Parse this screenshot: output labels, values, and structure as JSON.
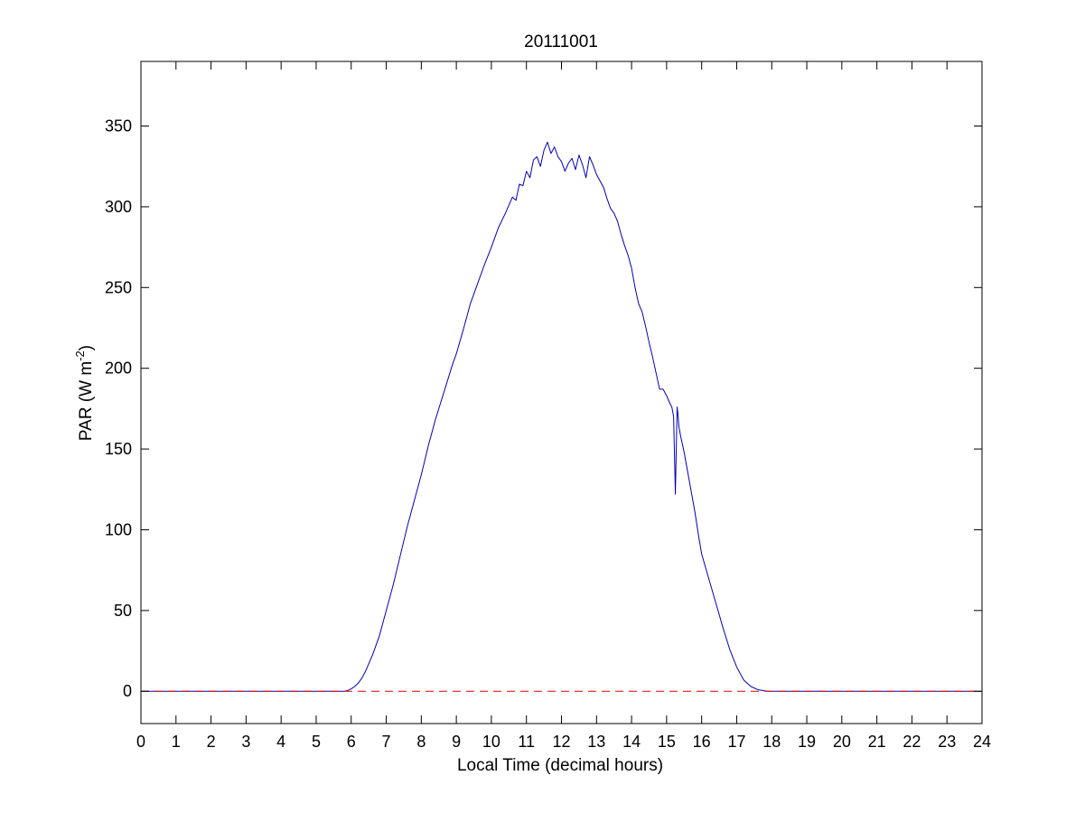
{
  "chart_data": {
    "type": "line",
    "title": "20111001",
    "xlabel": "Local Time (decimal hours)",
    "ylabel": {
      "main": "PAR (W m",
      "superscript": "-2",
      "suffix": ")"
    },
    "xlim": [
      0,
      24
    ],
    "ylim": [
      -20,
      390
    ],
    "x_ticks": [
      0,
      1,
      2,
      3,
      4,
      5,
      6,
      7,
      8,
      9,
      10,
      11,
      12,
      13,
      14,
      15,
      16,
      17,
      18,
      19,
      20,
      21,
      22,
      23,
      24
    ],
    "x_tick_labels": [
      "0",
      "1",
      "2",
      "3",
      "4",
      "5",
      "6",
      "7",
      "8",
      "9",
      "10",
      "11",
      "12",
      "13",
      "14",
      "15",
      "16",
      "17",
      "18",
      "19",
      "20",
      "21",
      "22",
      "23",
      "24"
    ],
    "y_ticks": [
      0,
      50,
      100,
      150,
      200,
      250,
      300,
      350
    ],
    "y_tick_labels": [
      "0",
      "50",
      "100",
      "150",
      "200",
      "250",
      "300",
      "350"
    ],
    "grid": false,
    "box": true,
    "series": [
      {
        "color": "#0000bb",
        "style": "solid",
        "x": [
          0,
          5.8,
          5.9,
          6.0,
          6.1,
          6.2,
          6.3,
          6.4,
          6.5,
          6.6,
          6.7,
          6.8,
          6.9,
          7.0,
          7.2,
          7.4,
          7.6,
          7.8,
          8.0,
          8.2,
          8.4,
          8.6,
          8.8,
          8.9,
          9.0,
          9.2,
          9.3,
          9.4,
          9.6,
          9.8,
          10.0,
          10.2,
          10.4,
          10.6,
          10.7,
          10.8,
          10.9,
          11.0,
          11.1,
          11.2,
          11.3,
          11.4,
          11.5,
          11.6,
          11.7,
          11.8,
          11.9,
          12.0,
          12.1,
          12.2,
          12.3,
          12.4,
          12.5,
          12.6,
          12.7,
          12.8,
          12.9,
          13.0,
          13.1,
          13.2,
          13.3,
          13.4,
          13.5,
          13.6,
          13.7,
          13.8,
          13.9,
          14.0,
          14.1,
          14.2,
          14.3,
          14.4,
          14.5,
          14.6,
          14.7,
          14.8,
          14.9,
          15.0,
          15.1,
          15.15,
          15.2,
          15.25,
          15.3,
          15.33,
          15.35,
          15.4,
          15.5,
          15.6,
          15.7,
          15.8,
          15.9,
          16.0,
          16.2,
          16.4,
          16.6,
          16.8,
          17.0,
          17.2,
          17.4,
          17.6,
          17.8,
          17.9,
          18.0,
          18.1,
          18.2,
          18.3,
          24
        ],
        "y": [
          0,
          0,
          0.5,
          1.5,
          3,
          5,
          8,
          12,
          17,
          22,
          28,
          34,
          42,
          50,
          66,
          84,
          102,
          118,
          134,
          152,
          168,
          182,
          196,
          203,
          209,
          224,
          232,
          240,
          252,
          264,
          275,
          287,
          296,
          306,
          304,
          314,
          313,
          322,
          318,
          329,
          331,
          325,
          335,
          340,
          333,
          337,
          331,
          328,
          322,
          327,
          330,
          323,
          332,
          326,
          318,
          331,
          326,
          320,
          316,
          312,
          305,
          299,
          296,
          291,
          283,
          276,
          270,
          262,
          250,
          240,
          235,
          226,
          216,
          207,
          197,
          187,
          187,
          183,
          178,
          176,
          170,
          122,
          176,
          170,
          164,
          158,
          148,
          136,
          124,
          112,
          98,
          85,
          70,
          55,
          40,
          26,
          15,
          7,
          3,
          1,
          0.3,
          0,
          0,
          0,
          0,
          0,
          0
        ]
      },
      {
        "color": "#dd0000",
        "style": "dashed",
        "x": [
          0,
          24
        ],
        "y": [
          0,
          0
        ]
      }
    ]
  }
}
